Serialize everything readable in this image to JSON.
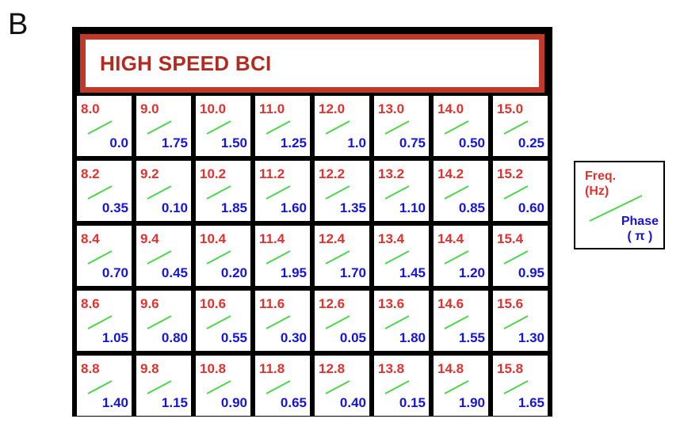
{
  "panel_label": "B",
  "title": "HIGH SPEED BCI",
  "colors": {
    "frequency": "#e0332f",
    "phase": "#1515d8",
    "divider": "#4cd64c",
    "banner": "#c0392b"
  },
  "cells": [
    [
      {
        "freq": "8.0",
        "phase": "0.0"
      },
      {
        "freq": "9.0",
        "phase": "1.75"
      },
      {
        "freq": "10.0",
        "phase": "1.50"
      },
      {
        "freq": "11.0",
        "phase": "1.25"
      },
      {
        "freq": "12.0",
        "phase": "1.0"
      },
      {
        "freq": "13.0",
        "phase": "0.75"
      },
      {
        "freq": "14.0",
        "phase": "0.50"
      },
      {
        "freq": "15.0",
        "phase": "0.25"
      }
    ],
    [
      {
        "freq": "8.2",
        "phase": "0.35"
      },
      {
        "freq": "9.2",
        "phase": "0.10"
      },
      {
        "freq": "10.2",
        "phase": "1.85"
      },
      {
        "freq": "11.2",
        "phase": "1.60"
      },
      {
        "freq": "12.2",
        "phase": "1.35"
      },
      {
        "freq": "13.2",
        "phase": "1.10"
      },
      {
        "freq": "14.2",
        "phase": "0.85"
      },
      {
        "freq": "15.2",
        "phase": "0.60"
      }
    ],
    [
      {
        "freq": "8.4",
        "phase": "0.70"
      },
      {
        "freq": "9.4",
        "phase": "0.45"
      },
      {
        "freq": "10.4",
        "phase": "0.20"
      },
      {
        "freq": "11.4",
        "phase": "1.95"
      },
      {
        "freq": "12.4",
        "phase": "1.70"
      },
      {
        "freq": "13.4",
        "phase": "1.45"
      },
      {
        "freq": "14.4",
        "phase": "1.20"
      },
      {
        "freq": "15.4",
        "phase": "0.95"
      }
    ],
    [
      {
        "freq": "8.6",
        "phase": "1.05"
      },
      {
        "freq": "9.6",
        "phase": "0.80"
      },
      {
        "freq": "10.6",
        "phase": "0.55"
      },
      {
        "freq": "11.6",
        "phase": "0.30"
      },
      {
        "freq": "12.6",
        "phase": "0.05"
      },
      {
        "freq": "13.6",
        "phase": "1.80"
      },
      {
        "freq": "14.6",
        "phase": "1.55"
      },
      {
        "freq": "15.6",
        "phase": "1.30"
      }
    ],
    [
      {
        "freq": "8.8",
        "phase": "1.40"
      },
      {
        "freq": "9.8",
        "phase": "1.15"
      },
      {
        "freq": "10.8",
        "phase": "0.90"
      },
      {
        "freq": "11.8",
        "phase": "0.65"
      },
      {
        "freq": "12.8",
        "phase": "0.40"
      },
      {
        "freq": "13.8",
        "phase": "0.15"
      },
      {
        "freq": "14.8",
        "phase": "1.90"
      },
      {
        "freq": "15.8",
        "phase": "1.65"
      }
    ]
  ],
  "legend": {
    "freq_line1": "Freq.",
    "freq_line2": "(Hz)",
    "phase_line1": "Phase",
    "phase_line2": "( π )"
  }
}
